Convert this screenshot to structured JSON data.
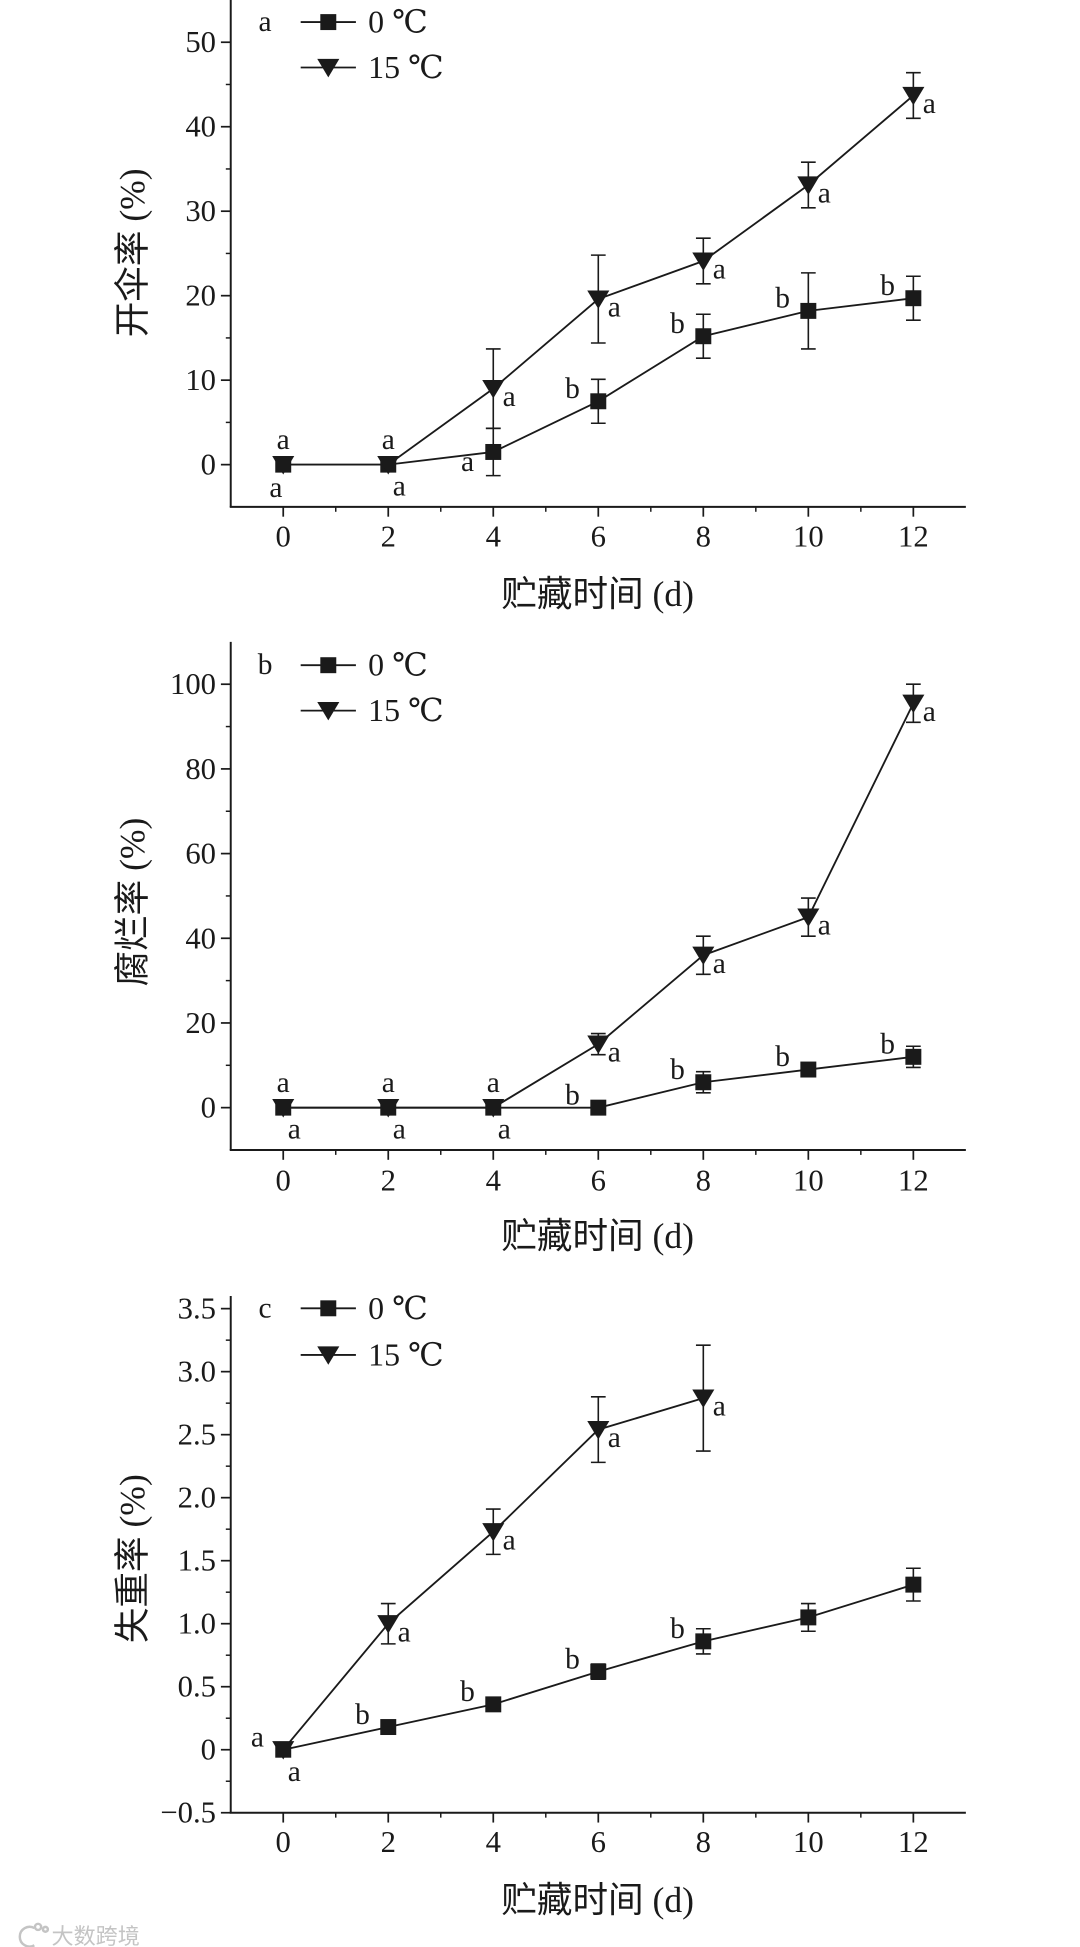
{
  "colors": {
    "ink": "#1a1a1a",
    "background": "#ffffff",
    "watermark": "#c4c4c4"
  },
  "watermark": {
    "text": "大数跨境"
  },
  "chart_data": [
    {
      "type": "line",
      "panel_label": "a",
      "xlabel": "贮藏时间 (d)",
      "ylabel": "开伞率 (%)",
      "xlim": [
        -1,
        13
      ],
      "ylim": [
        -5,
        55
      ],
      "xticks": [
        0,
        2,
        4,
        6,
        8,
        10,
        12
      ],
      "xtick_labels": [
        "0",
        "2",
        "4",
        "6",
        "8",
        "10",
        "12"
      ],
      "yticks": [
        0,
        10,
        20,
        30,
        40,
        50
      ],
      "ytick_labels": [
        "0",
        "10",
        "20",
        "30",
        "40",
        "50"
      ],
      "grid": false,
      "legend_position": "top-left",
      "series": [
        {
          "name": "0 ℃",
          "marker": "square",
          "x": [
            0,
            2,
            4,
            6,
            8,
            10,
            12
          ],
          "y": [
            0,
            0,
            1.5,
            7.5,
            15.2,
            18.2,
            19.7
          ],
          "error": [
            0,
            0,
            2.8,
            2.6,
            2.6,
            4.5,
            2.6
          ],
          "letters": [
            "a",
            "a",
            "a",
            "b",
            "b",
            "b",
            "b"
          ]
        },
        {
          "name": "15 ℃",
          "marker": "triangle-down",
          "x": [
            0,
            2,
            4,
            6,
            8,
            10,
            12
          ],
          "y": [
            0,
            0,
            9.0,
            19.6,
            24.1,
            33.1,
            43.7
          ],
          "error": [
            0,
            0,
            4.7,
            5.2,
            2.7,
            2.7,
            2.7
          ],
          "letters": [
            "a",
            "a",
            "a",
            "a",
            "a",
            "a",
            "a"
          ]
        }
      ]
    },
    {
      "type": "line",
      "panel_label": "b",
      "xlabel": "贮藏时间 (d)",
      "ylabel": "腐烂率 (%)",
      "xlim": [
        -1,
        13
      ],
      "ylim": [
        -10,
        110
      ],
      "xticks": [
        0,
        2,
        4,
        6,
        8,
        10,
        12
      ],
      "xtick_labels": [
        "0",
        "2",
        "4",
        "6",
        "8",
        "10",
        "12"
      ],
      "yticks": [
        0,
        20,
        40,
        60,
        80,
        100
      ],
      "ytick_labels": [
        "0",
        "20",
        "40",
        "60",
        "80",
        "100"
      ],
      "grid": false,
      "legend_position": "top-left",
      "series": [
        {
          "name": "0 ℃",
          "marker": "square",
          "x": [
            0,
            2,
            4,
            6,
            8,
            10,
            12
          ],
          "y": [
            0,
            0,
            0,
            0,
            6.0,
            9.0,
            12.0
          ],
          "error": [
            0,
            0,
            0,
            0,
            2.5,
            0.8,
            2.5
          ],
          "letters": [
            "a",
            "a",
            "a",
            "b",
            "b",
            "b",
            "b"
          ]
        },
        {
          "name": "15 ℃",
          "marker": "triangle-down",
          "x": [
            0,
            2,
            4,
            6,
            8,
            10,
            12
          ],
          "y": [
            0,
            0,
            0,
            15.0,
            36.0,
            45.0,
            95.5
          ],
          "error": [
            0,
            0,
            0,
            2.5,
            4.5,
            4.5,
            4.5
          ],
          "letters": [
            "a",
            "a",
            "a",
            "a",
            "a",
            "a",
            "a"
          ]
        }
      ]
    },
    {
      "type": "line",
      "panel_label": "c",
      "xlabel": "贮藏时间 (d)",
      "ylabel": "失重率 (%)",
      "xlim": [
        -1,
        13
      ],
      "ylim": [
        -0.5,
        3.6
      ],
      "xticks": [
        0,
        2,
        4,
        6,
        8,
        10,
        12
      ],
      "xtick_labels": [
        "0",
        "2",
        "4",
        "6",
        "8",
        "10",
        "12"
      ],
      "yticks": [
        -0.5,
        0,
        0.5,
        1.0,
        1.5,
        2.0,
        2.5,
        3.0,
        3.5
      ],
      "ytick_labels": [
        "−0.5",
        "0",
        "0.5",
        "1.0",
        "1.5",
        "2.0",
        "2.5",
        "3.0",
        "3.5"
      ],
      "grid": false,
      "legend_position": "top-left",
      "series": [
        {
          "name": "0 ℃",
          "marker": "square",
          "x": [
            0,
            2,
            4,
            6,
            8,
            10,
            12
          ],
          "y": [
            0,
            0.18,
            0.36,
            0.62,
            0.86,
            1.05,
            1.31
          ],
          "error": [
            0,
            0.03,
            0.05,
            0.06,
            0.1,
            0.11,
            0.13
          ],
          "letters": [
            "a",
            "b",
            "b",
            "b",
            "b",
            null,
            null
          ]
        },
        {
          "name": "15 ℃",
          "marker": "triangle-down",
          "x": [
            0,
            2,
            4,
            6,
            8
          ],
          "y": [
            0,
            1.0,
            1.73,
            2.54,
            2.79
          ],
          "error": [
            0,
            0.16,
            0.18,
            0.26,
            0.42
          ],
          "letters": [
            "a",
            "a",
            "a",
            "a",
            "a"
          ]
        }
      ]
    }
  ]
}
